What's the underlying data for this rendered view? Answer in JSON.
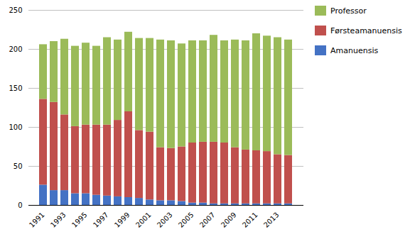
{
  "chart_data": {
    "type": "bar",
    "stacked": true,
    "categories": [
      "1991",
      null,
      "1993",
      null,
      "1995",
      null,
      "1997",
      null,
      "1999",
      null,
      "2001",
      null,
      "2003",
      null,
      "2005",
      null,
      "2007",
      null,
      "2009",
      null,
      "2011",
      null,
      "2013",
      null
    ],
    "series": [
      {
        "name": "Amanuensis",
        "color": "#4472c4",
        "values": [
          26,
          19,
          19,
          15,
          15,
          13,
          12,
          11,
          10,
          9,
          7,
          6,
          6,
          5,
          3,
          3,
          2,
          2,
          2,
          2,
          2,
          2,
          2,
          2
        ]
      },
      {
        "name": "Førsteamanuensis",
        "color": "#c0504d",
        "values": [
          110,
          113,
          97,
          86,
          88,
          90,
          91,
          98,
          110,
          87,
          87,
          68,
          67,
          70,
          77,
          78,
          79,
          78,
          72,
          69,
          68,
          67,
          63,
          62
        ]
      },
      {
        "name": "Professor",
        "color": "#9bbb59",
        "values": [
          70,
          78,
          97,
          103,
          105,
          101,
          112,
          103,
          102,
          118,
          120,
          138,
          138,
          132,
          131,
          130,
          137,
          131,
          138,
          140,
          150,
          148,
          150,
          148
        ]
      }
    ],
    "ylim": [
      0,
      250
    ],
    "yticks": [
      0,
      50,
      100,
      150,
      200,
      250
    ],
    "grid": true,
    "legend": "upper right"
  }
}
